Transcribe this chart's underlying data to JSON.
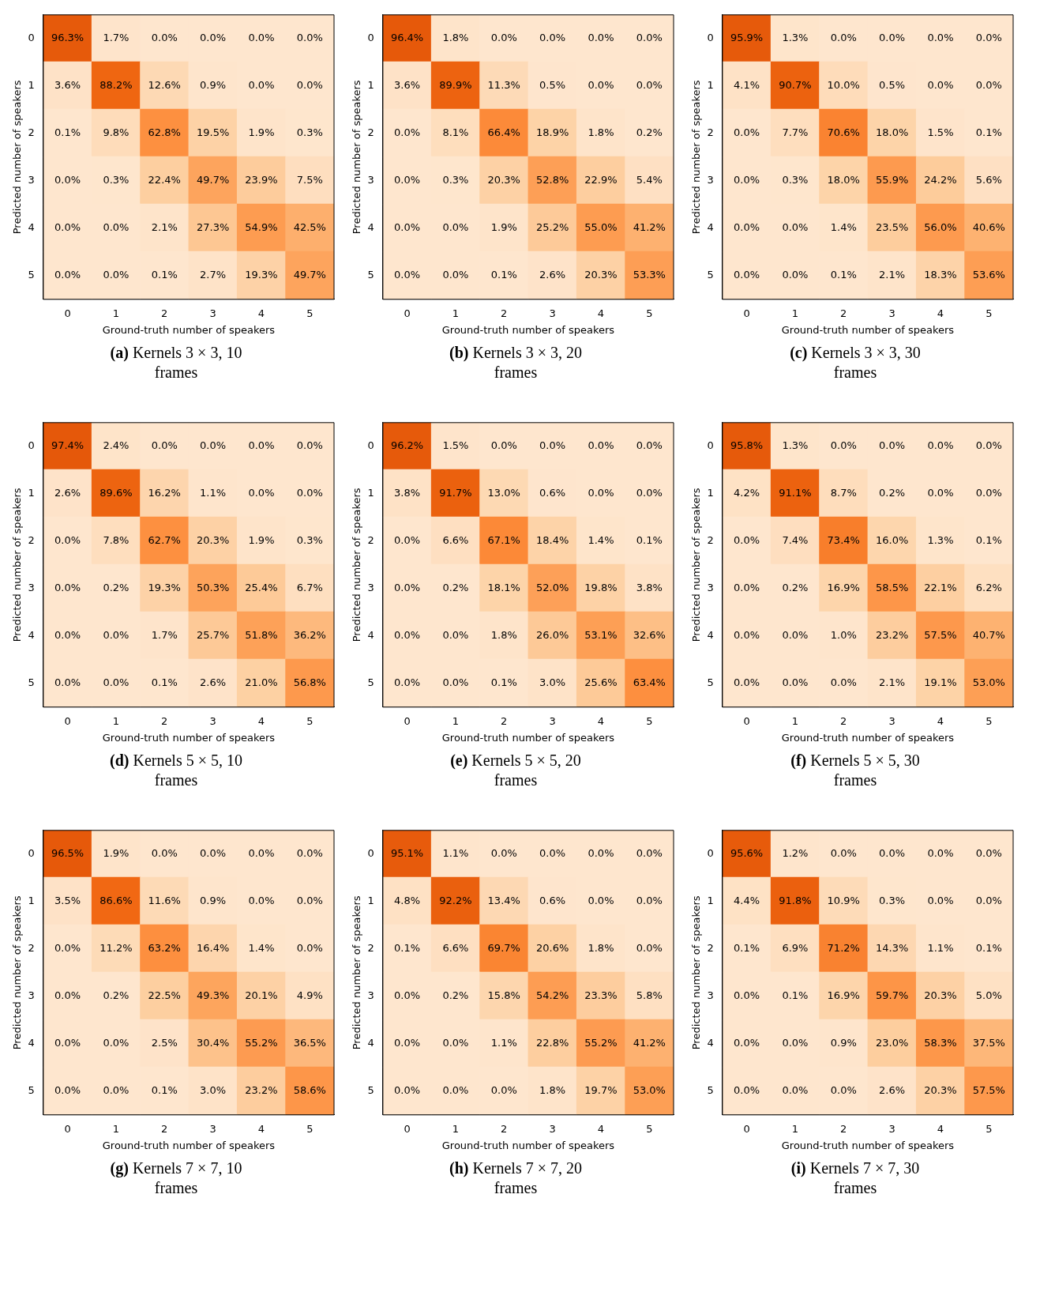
{
  "chart_data": [
    {
      "type": "heatmap",
      "title": "(a) Kernels 3 × 3, 10 frames",
      "xlabel": "Ground-truth number of speakers",
      "ylabel": "Predicted number of speakers",
      "categories": [
        "0",
        "1",
        "2",
        "3",
        "4",
        "5"
      ],
      "y_categories": [
        "0",
        "1",
        "2",
        "3",
        "4",
        "5"
      ],
      "cells": [
        [
          96.3,
          1.7,
          0.0,
          0.0,
          0.0,
          0.0
        ],
        [
          3.6,
          88.2,
          12.6,
          0.9,
          0.0,
          0.0
        ],
        [
          0.1,
          9.8,
          62.8,
          19.5,
          1.9,
          0.3
        ],
        [
          0.0,
          0.3,
          22.4,
          49.7,
          23.9,
          7.5
        ],
        [
          0.0,
          0.0,
          2.1,
          27.3,
          54.9,
          42.5
        ],
        [
          0.0,
          0.0,
          0.1,
          2.7,
          19.3,
          49.7
        ]
      ],
      "cell_labels": [
        [
          "96.3%",
          "1.7%",
          "0.0%",
          "0.0%",
          "0.0%",
          "0.0%"
        ],
        [
          "3.6%",
          "88.2%",
          "12.6%",
          "0.9%",
          "0.0%",
          "0.0%"
        ],
        [
          "0.1%",
          "9.8%",
          "62.8%",
          "19.5%",
          "1.9%",
          "0.3%"
        ],
        [
          "0.0%",
          "0.3%",
          "22.4%",
          "49.7%",
          "23.9%",
          "7.5%"
        ],
        [
          "0.0%",
          "0.0%",
          "2.1%",
          "27.3%",
          "54.9%",
          "42.5%"
        ],
        [
          "0.0%",
          "0.0%",
          "0.1%",
          "2.7%",
          "19.3%",
          "49.7%"
        ]
      ]
    },
    {
      "type": "heatmap",
      "title": "(b) Kernels 3 × 3, 20 frames",
      "xlabel": "Ground-truth number of speakers",
      "ylabel": "Predicted number of speakers",
      "categories": [
        "0",
        "1",
        "2",
        "3",
        "4",
        "5"
      ],
      "y_categories": [
        "0",
        "1",
        "2",
        "3",
        "4",
        "5"
      ],
      "cells": [
        [
          96.4,
          1.8,
          0.0,
          0.0,
          0.0,
          0.0
        ],
        [
          3.6,
          89.9,
          11.3,
          0.5,
          0.0,
          0.0
        ],
        [
          0.0,
          8.1,
          66.4,
          18.9,
          1.8,
          0.2
        ],
        [
          0.0,
          0.3,
          20.3,
          52.8,
          22.9,
          5.4
        ],
        [
          0.0,
          0.0,
          1.9,
          25.2,
          55.0,
          41.2
        ],
        [
          0.0,
          0.0,
          0.1,
          2.6,
          20.3,
          53.3
        ]
      ],
      "cell_labels": [
        [
          "96.4%",
          "1.8%",
          "0.0%",
          "0.0%",
          "0.0%",
          "0.0%"
        ],
        [
          "3.6%",
          "89.9%",
          "11.3%",
          "0.5%",
          "0.0%",
          "0.0%"
        ],
        [
          "0.0%",
          "8.1%",
          "66.4%",
          "18.9%",
          "1.8%",
          "0.2%"
        ],
        [
          "0.0%",
          "0.3%",
          "20.3%",
          "52.8%",
          "22.9%",
          "5.4%"
        ],
        [
          "0.0%",
          "0.0%",
          "1.9%",
          "25.2%",
          "55.0%",
          "41.2%"
        ],
        [
          "0.0%",
          "0.0%",
          "0.1%",
          "2.6%",
          "20.3%",
          "53.3%"
        ]
      ]
    },
    {
      "type": "heatmap",
      "title": "(c) Kernels 3 × 3, 30 frames",
      "xlabel": "Ground-truth number of speakers",
      "ylabel": "Predicted number of speakers",
      "categories": [
        "0",
        "1",
        "2",
        "3",
        "4",
        "5"
      ],
      "y_categories": [
        "0",
        "1",
        "2",
        "3",
        "4",
        "5"
      ],
      "cells": [
        [
          95.9,
          1.3,
          0.0,
          0.0,
          0.0,
          0.0
        ],
        [
          4.1,
          90.7,
          10.0,
          0.5,
          0.0,
          0.0
        ],
        [
          0.0,
          7.7,
          70.6,
          18.0,
          1.5,
          0.1
        ],
        [
          0.0,
          0.3,
          18.0,
          55.9,
          24.2,
          5.6
        ],
        [
          0.0,
          0.0,
          1.4,
          23.5,
          56.0,
          40.6
        ],
        [
          0.0,
          0.0,
          0.1,
          2.1,
          18.3,
          53.6
        ]
      ],
      "cell_labels": [
        [
          "95.9%",
          "1.3%",
          "0.0%",
          "0.0%",
          "0.0%",
          "0.0%"
        ],
        [
          "4.1%",
          "90.7%",
          "10.0%",
          "0.5%",
          "0.0%",
          "0.0%"
        ],
        [
          "0.0%",
          "7.7%",
          "70.6%",
          "18.0%",
          "1.5%",
          "0.1%"
        ],
        [
          "0.0%",
          "0.3%",
          "18.0%",
          "55.9%",
          "24.2%",
          "5.6%"
        ],
        [
          "0.0%",
          "0.0%",
          "1.4%",
          "23.5%",
          "56.0%",
          "40.6%"
        ],
        [
          "0.0%",
          "0.0%",
          "0.1%",
          "2.1%",
          "18.3%",
          "53.6%"
        ]
      ]
    },
    {
      "type": "heatmap",
      "title": "(d) Kernels 5 × 5, 10 frames",
      "xlabel": "Ground-truth number of speakers",
      "ylabel": "Predicted number of speakers",
      "categories": [
        "0",
        "1",
        "2",
        "3",
        "4",
        "5"
      ],
      "y_categories": [
        "0",
        "1",
        "2",
        "3",
        "4",
        "5"
      ],
      "cells": [
        [
          97.4,
          2.4,
          0.0,
          0.0,
          0.0,
          0.0
        ],
        [
          2.6,
          89.6,
          16.2,
          1.1,
          0.0,
          0.0
        ],
        [
          0.0,
          7.8,
          62.7,
          20.3,
          1.9,
          0.3
        ],
        [
          0.0,
          0.2,
          19.3,
          50.3,
          25.4,
          6.7
        ],
        [
          0.0,
          0.0,
          1.7,
          25.7,
          51.8,
          36.2
        ],
        [
          0.0,
          0.0,
          0.1,
          2.6,
          21.0,
          56.8
        ]
      ],
      "cell_labels": [
        [
          "97.4%",
          "2.4%",
          "0.0%",
          "0.0%",
          "0.0%",
          "0.0%"
        ],
        [
          "2.6%",
          "89.6%",
          "16.2%",
          "1.1%",
          "0.0%",
          "0.0%"
        ],
        [
          "0.0%",
          "7.8%",
          "62.7%",
          "20.3%",
          "1.9%",
          "0.3%"
        ],
        [
          "0.0%",
          "0.2%",
          "19.3%",
          "50.3%",
          "25.4%",
          "6.7%"
        ],
        [
          "0.0%",
          "0.0%",
          "1.7%",
          "25.7%",
          "51.8%",
          "36.2%"
        ],
        [
          "0.0%",
          "0.0%",
          "0.1%",
          "2.6%",
          "21.0%",
          "56.8%"
        ]
      ]
    },
    {
      "type": "heatmap",
      "title": "(e) Kernels 5 × 5, 20 frames",
      "xlabel": "Ground-truth number of speakers",
      "ylabel": "Predicted number of speakers",
      "categories": [
        "0",
        "1",
        "2",
        "3",
        "4",
        "5"
      ],
      "y_categories": [
        "0",
        "1",
        "2",
        "3",
        "4",
        "5"
      ],
      "cells": [
        [
          96.2,
          1.5,
          0.0,
          0.0,
          0.0,
          0.0
        ],
        [
          3.8,
          91.7,
          13.0,
          0.6,
          0.0,
          0.0
        ],
        [
          0.0,
          6.6,
          67.1,
          18.4,
          1.4,
          0.1
        ],
        [
          0.0,
          0.2,
          18.1,
          52.0,
          19.8,
          3.8
        ],
        [
          0.0,
          0.0,
          1.8,
          26.0,
          53.1,
          32.6
        ],
        [
          0.0,
          0.0,
          0.1,
          3.0,
          25.6,
          63.4
        ]
      ],
      "cell_labels": [
        [
          "96.2%",
          "1.5%",
          "0.0%",
          "0.0%",
          "0.0%",
          "0.0%"
        ],
        [
          "3.8%",
          "91.7%",
          "13.0%",
          "0.6%",
          "0.0%",
          "0.0%"
        ],
        [
          "0.0%",
          "6.6%",
          "67.1%",
          "18.4%",
          "1.4%",
          "0.1%"
        ],
        [
          "0.0%",
          "0.2%",
          "18.1%",
          "52.0%",
          "19.8%",
          "3.8%"
        ],
        [
          "0.0%",
          "0.0%",
          "1.8%",
          "26.0%",
          "53.1%",
          "32.6%"
        ],
        [
          "0.0%",
          "0.0%",
          "0.1%",
          "3.0%",
          "25.6%",
          "63.4%"
        ]
      ]
    },
    {
      "type": "heatmap",
      "title": "(f) Kernels 5 × 5, 30 frames",
      "xlabel": "Ground-truth number of speakers",
      "ylabel": "Predicted number of speakers",
      "categories": [
        "0",
        "1",
        "2",
        "3",
        "4",
        "5"
      ],
      "y_categories": [
        "0",
        "1",
        "2",
        "3",
        "4",
        "5"
      ],
      "cells": [
        [
          95.8,
          1.3,
          0.0,
          0.0,
          0.0,
          0.0
        ],
        [
          4.2,
          91.1,
          8.7,
          0.2,
          0.0,
          0.0
        ],
        [
          0.0,
          7.4,
          73.4,
          16.0,
          1.3,
          0.1
        ],
        [
          0.0,
          0.2,
          16.9,
          58.5,
          22.1,
          6.2
        ],
        [
          0.0,
          0.0,
          1.0,
          23.2,
          57.5,
          40.7
        ],
        [
          0.0,
          0.0,
          0.0,
          2.1,
          19.1,
          53.0
        ]
      ],
      "cell_labels": [
        [
          "95.8%",
          "1.3%",
          "0.0%",
          "0.0%",
          "0.0%",
          "0.0%"
        ],
        [
          "4.2%",
          "91.1%",
          "8.7%",
          "0.2%",
          "0.0%",
          "0.0%"
        ],
        [
          "0.0%",
          "7.4%",
          "73.4%",
          "16.0%",
          "1.3%",
          "0.1%"
        ],
        [
          "0.0%",
          "0.2%",
          "16.9%",
          "58.5%",
          "22.1%",
          "6.2%"
        ],
        [
          "0.0%",
          "0.0%",
          "1.0%",
          "23.2%",
          "57.5%",
          "40.7%"
        ],
        [
          "0.0%",
          "0.0%",
          "0.0%",
          "2.1%",
          "19.1%",
          "53.0%"
        ]
      ]
    },
    {
      "type": "heatmap",
      "title": "(g) Kernels 7 × 7, 10 frames",
      "xlabel": "Ground-truth number of speakers",
      "ylabel": "Predicted number of speakers",
      "categories": [
        "0",
        "1",
        "2",
        "3",
        "4",
        "5"
      ],
      "y_categories": [
        "0",
        "1",
        "2",
        "3",
        "4",
        "5"
      ],
      "cells": [
        [
          96.5,
          1.9,
          0.0,
          0.0,
          0.0,
          0.0
        ],
        [
          3.5,
          86.6,
          11.6,
          0.9,
          0.0,
          0.0
        ],
        [
          0.0,
          11.2,
          63.2,
          16.4,
          1.4,
          0.0
        ],
        [
          0.0,
          0.2,
          22.5,
          49.3,
          20.1,
          4.9
        ],
        [
          0.0,
          0.0,
          2.5,
          30.4,
          55.2,
          36.5
        ],
        [
          0.0,
          0.0,
          0.1,
          3.0,
          23.2,
          58.6
        ]
      ],
      "cell_labels": [
        [
          "96.5%",
          "1.9%",
          "0.0%",
          "0.0%",
          "0.0%",
          "0.0%"
        ],
        [
          "3.5%",
          "86.6%",
          "11.6%",
          "0.9%",
          "0.0%",
          "0.0%"
        ],
        [
          "0.0%",
          "11.2%",
          "63.2%",
          "16.4%",
          "1.4%",
          "0.0%"
        ],
        [
          "0.0%",
          "0.2%",
          "22.5%",
          "49.3%",
          "20.1%",
          "4.9%"
        ],
        [
          "0.0%",
          "0.0%",
          "2.5%",
          "30.4%",
          "55.2%",
          "36.5%"
        ],
        [
          "0.0%",
          "0.0%",
          "0.1%",
          "3.0%",
          "23.2%",
          "58.6%"
        ]
      ]
    },
    {
      "type": "heatmap",
      "title": "(h) Kernels 7 × 7, 20 frames",
      "xlabel": "Ground-truth number of speakers",
      "ylabel": "Predicted number of speakers",
      "categories": [
        "0",
        "1",
        "2",
        "3",
        "4",
        "5"
      ],
      "y_categories": [
        "0",
        "1",
        "2",
        "3",
        "4",
        "5"
      ],
      "cells": [
        [
          95.1,
          1.1,
          0.0,
          0.0,
          0.0,
          0.0
        ],
        [
          4.8,
          92.2,
          13.4,
          0.6,
          0.0,
          0.0
        ],
        [
          0.1,
          6.6,
          69.7,
          20.6,
          1.8,
          0.0
        ],
        [
          0.0,
          0.2,
          15.8,
          54.2,
          23.3,
          5.8
        ],
        [
          0.0,
          0.0,
          1.1,
          22.8,
          55.2,
          41.2
        ],
        [
          0.0,
          0.0,
          0.0,
          1.8,
          19.7,
          53.0
        ]
      ],
      "cell_labels": [
        [
          "95.1%",
          "1.1%",
          "0.0%",
          "0.0%",
          "0.0%",
          "0.0%"
        ],
        [
          "4.8%",
          "92.2%",
          "13.4%",
          "0.6%",
          "0.0%",
          "0.0%"
        ],
        [
          "0.1%",
          "6.6%",
          "69.7%",
          "20.6%",
          "1.8%",
          "0.0%"
        ],
        [
          "0.0%",
          "0.2%",
          "15.8%",
          "54.2%",
          "23.3%",
          "5.8%"
        ],
        [
          "0.0%",
          "0.0%",
          "1.1%",
          "22.8%",
          "55.2%",
          "41.2%"
        ],
        [
          "0.0%",
          "0.0%",
          "0.0%",
          "1.8%",
          "19.7%",
          "53.0%"
        ]
      ]
    },
    {
      "type": "heatmap",
      "title": "(i) Kernels 7 × 7, 30 frames",
      "xlabel": "Ground-truth number of speakers",
      "ylabel": "Predicted number of speakers",
      "categories": [
        "0",
        "1",
        "2",
        "3",
        "4",
        "5"
      ],
      "y_categories": [
        "0",
        "1",
        "2",
        "3",
        "4",
        "5"
      ],
      "cells": [
        [
          95.6,
          1.2,
          0.0,
          0.0,
          0.0,
          0.0
        ],
        [
          4.4,
          91.8,
          10.9,
          0.3,
          0.0,
          0.0
        ],
        [
          0.1,
          6.9,
          71.2,
          14.3,
          1.1,
          0.1
        ],
        [
          0.0,
          0.1,
          16.9,
          59.7,
          20.3,
          5.0
        ],
        [
          0.0,
          0.0,
          0.9,
          23.0,
          58.3,
          37.5
        ],
        [
          0.0,
          0.0,
          0.0,
          2.6,
          20.3,
          57.5
        ]
      ],
      "cell_labels": [
        [
          "95.6%",
          "1.2%",
          "0.0%",
          "0.0%",
          "0.0%",
          "0.0%"
        ],
        [
          "4.4%",
          "91.8%",
          "10.9%",
          "0.3%",
          "0.0%",
          "0.0%"
        ],
        [
          "0.1%",
          "6.9%",
          "71.2%",
          "14.3%",
          "1.1%",
          "0.1%"
        ],
        [
          "0.0%",
          "0.1%",
          "16.9%",
          "59.7%",
          "20.3%",
          "5.0%"
        ],
        [
          "0.0%",
          "0.0%",
          "0.9%",
          "23.0%",
          "58.3%",
          "37.5%"
        ],
        [
          "0.0%",
          "0.0%",
          "0.0%",
          "2.6%",
          "20.3%",
          "57.5%"
        ]
      ]
    }
  ]
}
